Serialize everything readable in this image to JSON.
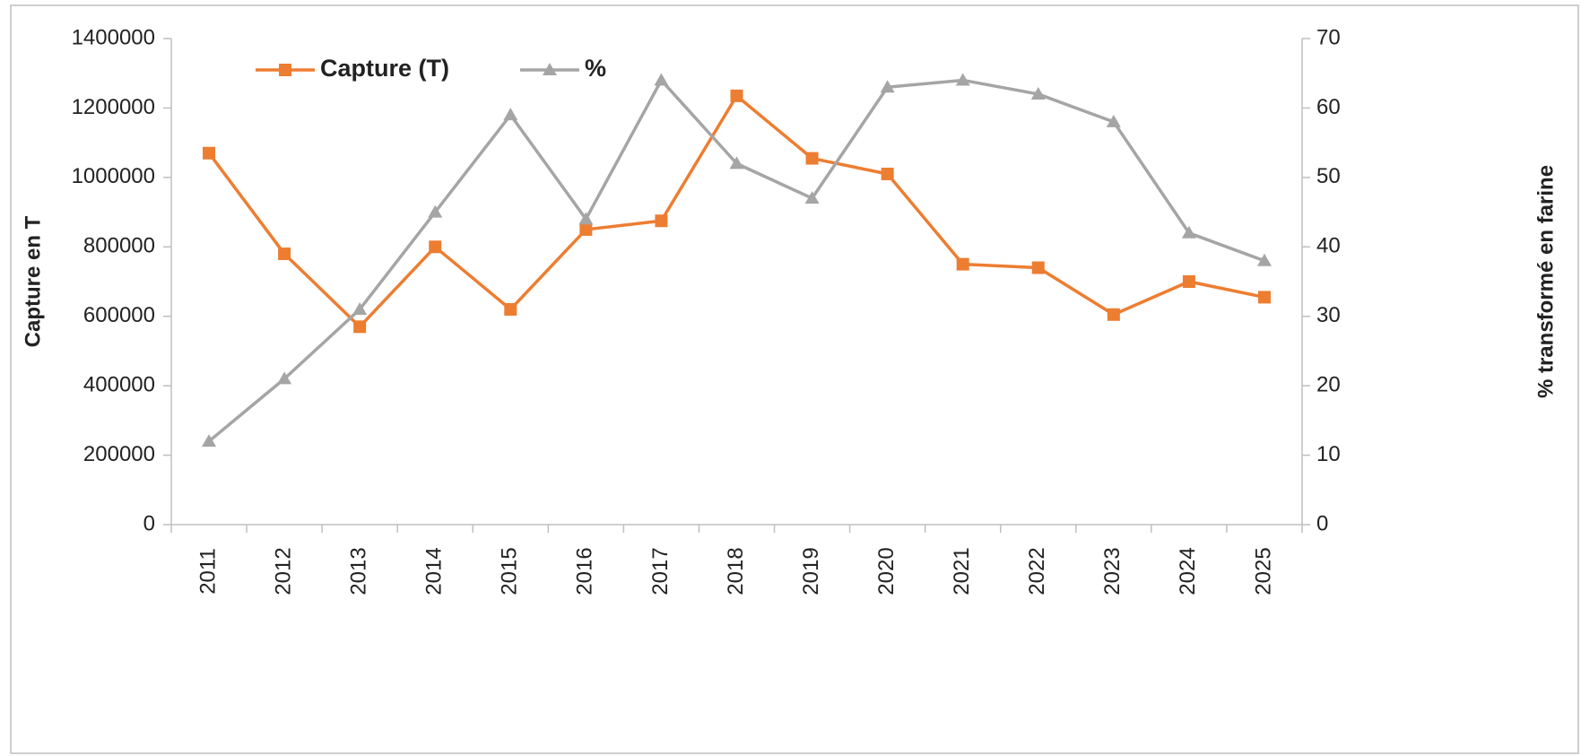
{
  "chart_data": {
    "type": "line",
    "categories": [
      "2011",
      "2012",
      "2013",
      "2014",
      "2015",
      "2016",
      "2017",
      "2018",
      "2019",
      "2020",
      "2021",
      "2022",
      "2023",
      "2024",
      "2025"
    ],
    "series": [
      {
        "name": "Capture (T)",
        "color": "#ed7d31",
        "marker": "square",
        "axis": "y",
        "values": [
          1070000,
          780000,
          570000,
          800000,
          620000,
          850000,
          875000,
          1235000,
          1055000,
          1010000,
          750000,
          740000,
          605000,
          700000,
          655000
        ]
      },
      {
        "name": "%",
        "color": "#a5a5a5",
        "marker": "triangle",
        "axis": "y2",
        "values": [
          12,
          21,
          31,
          45,
          59,
          44,
          64,
          52,
          47,
          63,
          64,
          62,
          58,
          42,
          38
        ]
      }
    ],
    "ylabel": "Capture en T",
    "y2label": "% transformé en farine",
    "ylim": [
      0,
      1400000
    ],
    "yticks": [
      0,
      200000,
      400000,
      600000,
      800000,
      1000000,
      1200000,
      1400000
    ],
    "y2lim": [
      0,
      70
    ],
    "y2ticks": [
      0,
      10,
      20,
      30,
      40,
      50,
      60,
      70
    ],
    "grid": false,
    "legend": "top-left"
  }
}
